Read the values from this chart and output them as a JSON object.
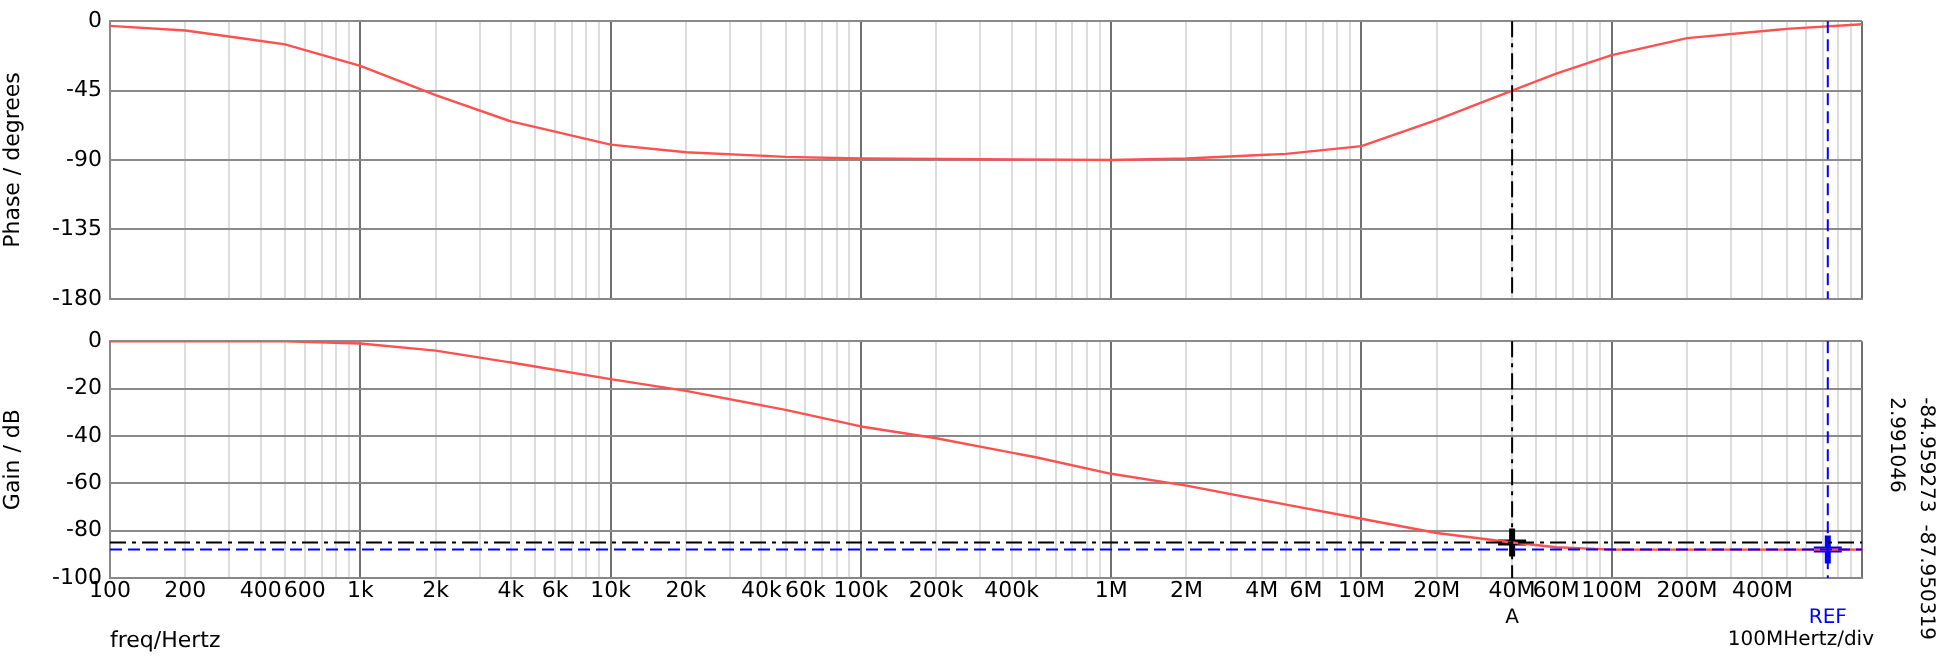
{
  "chart_data": [
    {
      "type": "line",
      "ylabel": "Phase / degrees",
      "color": "#ff5050",
      "marker": "none",
      "x": [
        100,
        200,
        500,
        1000,
        2000,
        4000,
        10000,
        20000,
        50000,
        100000,
        1000000,
        2000000,
        5000000,
        10000000,
        20000000,
        40000000,
        60000000,
        100000000,
        200000000,
        500000000,
        1000000000
      ],
      "values": [
        -3,
        -6,
        -15,
        -29,
        -48,
        -65,
        -80,
        -85,
        -88,
        -89,
        -90,
        -89,
        -86,
        -81,
        -64,
        -45,
        -34,
        -22,
        -11,
        -5,
        -2
      ],
      "xlim": [
        100,
        1000000000
      ],
      "ylim": [
        -180,
        0
      ],
      "yticks": [
        0,
        -45,
        -90,
        -135,
        -180
      ],
      "xticks": [
        {
          "value": 100,
          "label": null
        },
        {
          "value": 200,
          "label": null
        },
        {
          "value": 300,
          "label": null
        },
        {
          "value": 400,
          "label": null
        },
        {
          "value": 500,
          "label": null
        },
        {
          "value": 600,
          "label": null
        },
        {
          "value": 700,
          "label": null
        },
        {
          "value": 800,
          "label": null
        },
        {
          "value": 900,
          "label": null
        },
        {
          "value": 1000,
          "label": null
        },
        {
          "value": 2000,
          "label": null
        },
        {
          "value": 3000,
          "label": null
        },
        {
          "value": 4000,
          "label": null
        },
        {
          "value": 5000,
          "label": null
        },
        {
          "value": 6000,
          "label": null
        },
        {
          "value": 7000,
          "label": null
        },
        {
          "value": 8000,
          "label": null
        },
        {
          "value": 9000,
          "label": null
        },
        {
          "value": 10000,
          "label": null
        },
        {
          "value": 20000,
          "label": null
        },
        {
          "value": 30000,
          "label": null
        },
        {
          "value": 40000,
          "label": null
        },
        {
          "value": 50000,
          "label": null
        },
        {
          "value": 60000,
          "label": null
        },
        {
          "value": 70000,
          "label": null
        },
        {
          "value": 80000,
          "label": null
        },
        {
          "value": 90000,
          "label": null
        },
        {
          "value": 100000,
          "label": null
        },
        {
          "value": 200000,
          "label": null
        },
        {
          "value": 300000,
          "label": null
        },
        {
          "value": 400000,
          "label": null
        },
        {
          "value": 500000,
          "label": null
        },
        {
          "value": 600000,
          "label": null
        },
        {
          "value": 700000,
          "label": null
        },
        {
          "value": 800000,
          "label": null
        },
        {
          "value": 900000,
          "label": null
        },
        {
          "value": 1000000,
          "label": null
        },
        {
          "value": 2000000,
          "label": null
        },
        {
          "value": 3000000,
          "label": null
        },
        {
          "value": 4000000,
          "label": null
        },
        {
          "value": 5000000,
          "label": null
        },
        {
          "value": 6000000,
          "label": null
        },
        {
          "value": 7000000,
          "label": null
        },
        {
          "value": 8000000,
          "label": null
        },
        {
          "value": 9000000,
          "label": null
        },
        {
          "value": 10000000,
          "label": null
        },
        {
          "value": 20000000,
          "label": null
        },
        {
          "value": 30000000,
          "label": null
        },
        {
          "value": 40000000,
          "label": null
        },
        {
          "value": 50000000,
          "label": null
        },
        {
          "value": 60000000,
          "label": null
        },
        {
          "value": 70000000,
          "label": null
        },
        {
          "value": 80000000,
          "label": null
        },
        {
          "value": 90000000,
          "label": null
        },
        {
          "value": 100000000,
          "label": null
        },
        {
          "value": 200000000,
          "label": null
        },
        {
          "value": 300000000,
          "label": null
        },
        {
          "value": 400000000,
          "label": null
        },
        {
          "value": 500000000,
          "label": null
        },
        {
          "value": 600000000,
          "label": null
        },
        {
          "value": 700000000,
          "label": null
        },
        {
          "value": 800000000,
          "label": null
        },
        {
          "value": 900000000,
          "label": null
        },
        {
          "value": 1000000000,
          "label": null
        }
      ],
      "log": "x",
      "grid": true,
      "legend": false,
      "tick_labels": "y",
      "ref_lines": [
        {
          "axis": "x",
          "value": 40000000,
          "color": "#000000",
          "line_style": "dashdot"
        },
        {
          "axis": "x",
          "value": 730000000,
          "color": "#0000ff",
          "line_style": "dashed"
        }
      ]
    },
    {
      "type": "line",
      "ylabel": "Gain / dB",
      "xlabel": "freq/Hertz",
      "marker": "none",
      "x": [
        100,
        200,
        500,
        1000,
        2000,
        4000,
        10000,
        20000,
        50000,
        100000,
        200000,
        500000,
        1000000,
        2000000,
        5000000,
        10000000,
        20000000,
        40000000,
        60000000,
        100000000,
        200000000,
        500000000,
        1000000000
      ],
      "series": [
        {
          "color": "#ff5050",
          "values": [
            0,
            0,
            0,
            -1,
            -4,
            -9,
            -16,
            -21,
            -29,
            -36,
            -41,
            -49,
            -56,
            -61,
            -69,
            -75,
            -81,
            -85,
            -87,
            -88,
            -88,
            -88,
            -88
          ]
        },
        {
          "type": "scatter",
          "marker": "cross",
          "color": "#000000",
          "x": [
            40000000
          ],
          "values": [
            -85
          ]
        },
        {
          "type": "scatter",
          "marker": "cross",
          "color": "#0000ff",
          "x": [
            730000000
          ],
          "values": [
            -88
          ]
        }
      ],
      "xlim": [
        100,
        1000000000
      ],
      "ylim": [
        -100,
        0
      ],
      "yticks": [
        0,
        -20,
        -40,
        -60,
        -80,
        -100
      ],
      "xticks": [
        100,
        200,
        {
          "value": 300,
          "label": null
        },
        400,
        {
          "value": 500,
          "label": null
        },
        600,
        {
          "value": 700,
          "label": null
        },
        {
          "value": 800,
          "label": null
        },
        {
          "value": 900,
          "label": null
        },
        {
          "value": 1000,
          "label": "1k"
        },
        {
          "value": 2000,
          "label": "2k"
        },
        {
          "value": 3000,
          "label": null
        },
        {
          "value": 4000,
          "label": "4k"
        },
        {
          "value": 5000,
          "label": null
        },
        {
          "value": 6000,
          "label": "6k"
        },
        {
          "value": 7000,
          "label": null
        },
        {
          "value": 8000,
          "label": null
        },
        {
          "value": 9000,
          "label": null
        },
        {
          "value": 10000,
          "label": "10k"
        },
        {
          "value": 20000,
          "label": "20k"
        },
        {
          "value": 30000,
          "label": null
        },
        {
          "value": 40000,
          "label": "40k"
        },
        {
          "value": 50000,
          "label": null
        },
        {
          "value": 60000,
          "label": "60k"
        },
        {
          "value": 70000,
          "label": null
        },
        {
          "value": 80000,
          "label": null
        },
        {
          "value": 90000,
          "label": null
        },
        {
          "value": 100000,
          "label": "100k"
        },
        {
          "value": 200000,
          "label": "200k"
        },
        {
          "value": 300000,
          "label": null
        },
        {
          "value": 400000,
          "label": "400k"
        },
        {
          "value": 500000,
          "label": null
        },
        {
          "value": 600000,
          "label": null
        },
        {
          "value": 700000,
          "label": null
        },
        {
          "value": 800000,
          "label": null
        },
        {
          "value": 900000,
          "label": null
        },
        {
          "value": 1000000,
          "label": "1M"
        },
        {
          "value": 2000000,
          "label": "2M"
        },
        {
          "value": 3000000,
          "label": null
        },
        {
          "value": 4000000,
          "label": "4M"
        },
        {
          "value": 5000000,
          "label": null
        },
        {
          "value": 6000000,
          "label": "6M"
        },
        {
          "value": 7000000,
          "label": null
        },
        {
          "value": 8000000,
          "label": null
        },
        {
          "value": 9000000,
          "label": null
        },
        {
          "value": 10000000,
          "label": "10M"
        },
        {
          "value": 20000000,
          "label": "20M"
        },
        {
          "value": 30000000,
          "label": null
        },
        {
          "value": 40000000,
          "label": "40M"
        },
        {
          "value": 50000000,
          "label": null
        },
        {
          "value": 60000000,
          "label": "60M"
        },
        {
          "value": 70000000,
          "label": null
        },
        {
          "value": 80000000,
          "label": null
        },
        {
          "value": 90000000,
          "label": null
        },
        {
          "value": 100000000,
          "label": "100M"
        },
        {
          "value": 200000000,
          "label": "200M"
        },
        {
          "value": 300000000,
          "label": null
        },
        {
          "value": 400000000,
          "label": "400M"
        },
        {
          "value": 500000000,
          "label": null
        },
        {
          "value": 600000000,
          "label": null
        },
        {
          "value": 700000000,
          "label": null
        },
        {
          "value": 800000000,
          "label": null
        },
        {
          "value": 900000000,
          "label": null
        },
        {
          "value": 1000000000,
          "label": null
        }
      ],
      "log": "x",
      "grid": true,
      "legend": false,
      "ref_lines": [
        {
          "axis": "x",
          "value": 40000000,
          "label": "A",
          "color": "#000000",
          "line_style": "dashdot"
        },
        {
          "axis": "x",
          "value": 730000000,
          "label": "REF",
          "color": "#0000ff",
          "line_style": "dashed"
        },
        {
          "axis": "y",
          "value": -84.959273,
          "color": "#000000",
          "line_style": "dashdot"
        },
        {
          "axis": "y",
          "value": -87.950319,
          "color": "#0000ff",
          "line_style": "dashed"
        }
      ],
      "annotations": [
        "-84.959273",
        "2.991046",
        "-87.950319",
        "100MHertz/div"
      ]
    }
  ]
}
